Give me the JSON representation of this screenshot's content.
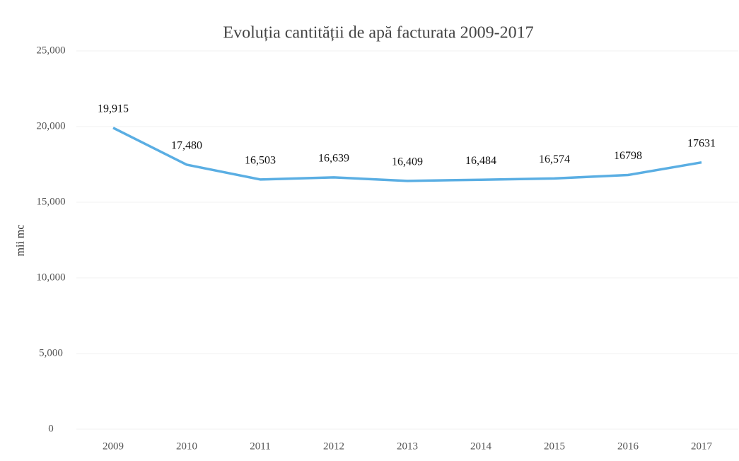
{
  "chart_data": {
    "type": "line",
    "title": "Evoluția cantității de apă facturata 2009-2017",
    "y_label": "mii mc",
    "categories": [
      "2009",
      "2010",
      "2011",
      "2012",
      "2013",
      "2014",
      "2015",
      "2016",
      "2017"
    ],
    "values": [
      19915,
      17480,
      16503,
      16639,
      16409,
      16484,
      16574,
      16798,
      17631
    ],
    "value_labels": [
      "19,915",
      "17,480",
      "16,503",
      "16,639",
      "16,409",
      "16,484",
      "16,574",
      "16798",
      "17631"
    ],
    "color": "#5aaee3",
    "ylim": [
      0,
      25000
    ],
    "yticks": [
      0,
      {
        "value": 5000,
        "label": "5,000"
      },
      {
        "value": 10000,
        "label": "10,000"
      },
      {
        "value": 15000,
        "label": "15,000"
      },
      {
        "value": 20000,
        "label": "20,000"
      },
      {
        "value": 25000,
        "label": "25,000"
      }
    ],
    "grid": true
  }
}
